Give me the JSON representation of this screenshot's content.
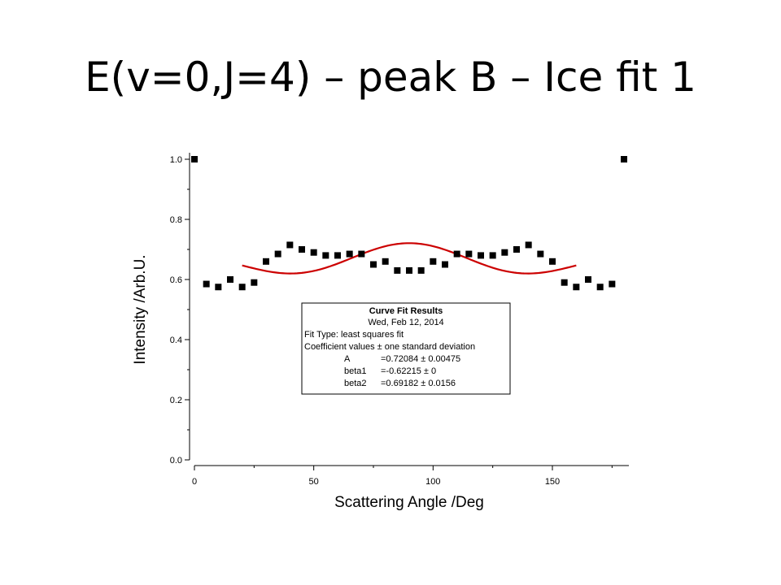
{
  "slide": {
    "title": "E(v=0,J=4) – peak B – Ice fit 1"
  },
  "chart_data": {
    "type": "scatter",
    "xlabel": "Scattering Angle /Deg",
    "ylabel": "Intensity /Arb.U.",
    "xlim": [
      0,
      180
    ],
    "ylim": [
      0.0,
      1.0
    ],
    "x_ticks": [
      0,
      50,
      100,
      150
    ],
    "y_ticks": [
      0.0,
      0.2,
      0.4,
      0.6,
      0.8,
      1.0
    ],
    "x_tick_labels": [
      "0",
      "50",
      "100",
      "150"
    ],
    "y_tick_labels": [
      "0.0",
      "0.2",
      "0.4",
      "0.6",
      "0.8",
      "1.0"
    ],
    "grid": false,
    "series": [
      {
        "type": "scatter",
        "marker": "square",
        "color": "#000000",
        "x": [
          0,
          5,
          10,
          15,
          20,
          25,
          30,
          35,
          40,
          45,
          50,
          55,
          60,
          65,
          70,
          75,
          80,
          85,
          90,
          95,
          100,
          105,
          110,
          115,
          120,
          125,
          130,
          135,
          140,
          145,
          150,
          155,
          160,
          165,
          170,
          175,
          180
        ],
        "y": [
          1.0,
          0.585,
          0.575,
          0.6,
          0.575,
          0.59,
          0.66,
          0.685,
          0.715,
          0.7,
          0.69,
          0.68,
          0.68,
          0.685,
          0.685,
          0.65,
          0.66,
          0.63,
          0.63,
          0.63,
          0.66,
          0.65,
          0.685,
          0.685,
          0.68,
          0.68,
          0.69,
          0.7,
          0.715,
          0.685,
          0.66,
          0.59,
          0.575,
          0.6,
          0.575,
          0.585,
          1.0
        ]
      },
      {
        "type": "line",
        "color": "#cc0000",
        "x_range": [
          20,
          160
        ],
        "model": "A*(1+beta1*P2(cos x)+beta2*P4(cos x)) normalized",
        "coefficients": {
          "A": 0.72084,
          "beta1": -0.62215,
          "beta2": 0.69182
        }
      }
    ],
    "annotation": {
      "lines": [
        "Curve Fit Results",
        "Wed, Feb 12, 2014",
        "Fit Type: least squares fit",
        "Coefficient values ± one standard deviation"
      ],
      "coefficients": [
        {
          "name": "A",
          "value": "=0.72084 ± 0.00475"
        },
        {
          "name": "beta1",
          "value": "=-0.62215 ± 0"
        },
        {
          "name": "beta2",
          "value": "=0.69182 ± 0.0156"
        }
      ]
    }
  }
}
